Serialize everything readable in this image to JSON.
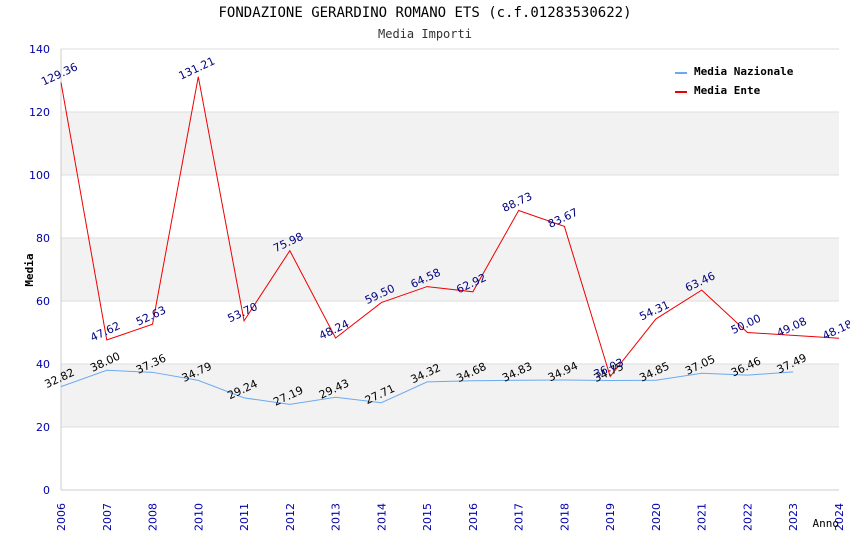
{
  "chart_data": {
    "type": "line",
    "title": "FONDAZIONE GERARDINO ROMANO ETS (c.f.01283530622)",
    "subtitle": "Media Importi",
    "xlabel": "Anno",
    "ylabel": "Media",
    "ylim": [
      0,
      140
    ],
    "yticks": [
      0,
      20,
      40,
      60,
      80,
      100,
      120,
      140
    ],
    "grid": true,
    "legend_position": "top-right",
    "categories": [
      "2006",
      "2007",
      "2008",
      "2010",
      "2011",
      "2012",
      "2013",
      "2014",
      "2015",
      "2016",
      "2017",
      "2018",
      "2019",
      "2020",
      "2021",
      "2022",
      "2023",
      "2024"
    ],
    "series": [
      {
        "name": "Media Nazionale",
        "color": "#6aaaf0",
        "label_color": "#000000",
        "values": [
          32.82,
          38.0,
          37.36,
          34.79,
          29.24,
          27.19,
          29.43,
          27.71,
          34.32,
          34.68,
          34.83,
          34.94,
          34.75,
          34.85,
          37.05,
          36.46,
          37.49,
          null
        ],
        "labels": [
          "32.82",
          "38.00",
          "37.36",
          "34.79",
          "29.24",
          "27.19",
          "29.43",
          "27.71",
          "34.32",
          "34.68",
          "34.83",
          "34.94",
          "34.75",
          "34.85",
          "37.05",
          "36.46",
          "37.49",
          ""
        ]
      },
      {
        "name": "Media Ente",
        "color": "#ee0000",
        "label_color": "#000080",
        "values": [
          129.36,
          47.62,
          52.63,
          131.21,
          53.7,
          75.98,
          48.24,
          59.5,
          64.58,
          62.92,
          88.73,
          83.67,
          36.03,
          54.31,
          63.46,
          50.0,
          49.08,
          48.18
        ],
        "labels": [
          "129.36",
          "47.62",
          "52.63",
          "131.21",
          "53.70",
          "75.98",
          "48.24",
          "59.50",
          "64.58",
          "62.92",
          "88.73",
          "83.67",
          "36.03",
          "54.31",
          "63.46",
          "50.00",
          "49.08",
          "48.18"
        ]
      }
    ]
  }
}
